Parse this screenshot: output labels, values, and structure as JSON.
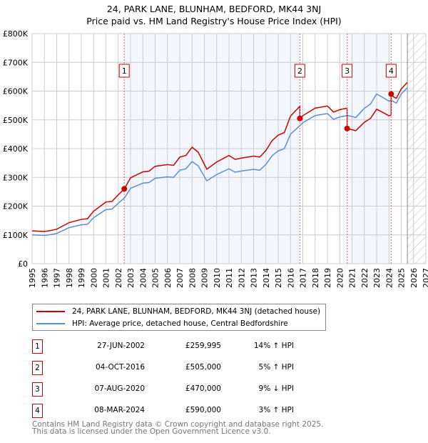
{
  "chart_data": {
    "type": "line",
    "title": "24, PARK LANE, BLUNHAM, BEDFORD, MK44 3NJ",
    "subtitle": "Price paid vs. HM Land Registry's House Price Index (HPI)",
    "ylim": [
      0,
      800000
    ],
    "xlim": [
      1995,
      2027
    ],
    "yticks": [
      {
        "v": 0,
        "l": "£0"
      },
      {
        "v": 100000,
        "l": "£100K"
      },
      {
        "v": 200000,
        "l": "£200K"
      },
      {
        "v": 300000,
        "l": "£300K"
      },
      {
        "v": 400000,
        "l": "£400K"
      },
      {
        "v": 500000,
        "l": "£500K"
      },
      {
        "v": 600000,
        "l": "£600K"
      },
      {
        "v": 700000,
        "l": "£700K"
      },
      {
        "v": 800000,
        "l": "£800K"
      }
    ],
    "xticks": [
      "1995",
      "1996",
      "1997",
      "1998",
      "1999",
      "2000",
      "2001",
      "2002",
      "2003",
      "2004",
      "2005",
      "2006",
      "2007",
      "2008",
      "2009",
      "2010",
      "2011",
      "2012",
      "2013",
      "2014",
      "2015",
      "2016",
      "2017",
      "2018",
      "2019",
      "2020",
      "2021",
      "2022",
      "2023",
      "2024",
      "2025",
      "2026",
      "2027"
    ],
    "forecast_start": 2025.5,
    "series": [
      {
        "name": "HPI: Average price, detached house, Central Bedfordshire",
        "color": "#5b8fd4",
        "x": [
          1995,
          1996,
          1996.5,
          1997,
          1998,
          1999,
          1999.5,
          2000,
          2001,
          2001.5,
          2002,
          2002.5,
          2003,
          2004,
          2004.5,
          2005,
          2006,
          2006.5,
          2007,
          2007.5,
          2008,
          2008.5,
          2009.2,
          2010,
          2011,
          2011.5,
          2012,
          2013,
          2013.5,
          2014,
          2014.5,
          2015,
          2015.5,
          2016,
          2016.76,
          2017,
          2018,
          2019,
          2019.5,
          2020,
          2020.6,
          2021,
          2021.3,
          2022,
          2022.5,
          2023,
          2023.5,
          2024,
          2024.18,
          2024.6,
          2025,
          2025.5
        ],
        "y": [
          100000,
          98000,
          101000,
          105000,
          125000,
          135000,
          137000,
          160000,
          188000,
          190000,
          210000,
          228000,
          262000,
          280000,
          282000,
          297000,
          302000,
          300000,
          325000,
          330000,
          355000,
          340000,
          288000,
          310000,
          330000,
          318000,
          322000,
          328000,
          325000,
          345000,
          375000,
          392000,
          400000,
          450000,
          480000,
          490000,
          515000,
          522000,
          502000,
          510000,
          515000,
          512000,
          508000,
          540000,
          555000,
          590000,
          578000,
          565000,
          568000,
          558000,
          590000,
          612000
        ]
      },
      {
        "name": "24, PARK LANE, BLUNHAM, BEDFORD, MK44 3NJ (detached house)",
        "color": "#cc0000",
        "derived_from": "hpi_scaled_by_sale_ratio"
      }
    ],
    "sales": [
      {
        "n": "1",
        "x": 2002.49,
        "date": "27-JUN-2002",
        "price": 259995,
        "price_label": "£259,995",
        "hpi": "14% ↑ HPI",
        "ratio": 1.14
      },
      {
        "n": "2",
        "x": 2016.76,
        "date": "04-OCT-2016",
        "price": 505000,
        "price_label": "£505,000",
        "hpi": "5% ↑ HPI",
        "ratio": 1.05
      },
      {
        "n": "3",
        "x": 2020.6,
        "date": "07-AUG-2020",
        "price": 470000,
        "price_label": "£470,000",
        "hpi": "9% ↓ HPI",
        "ratio": 0.91
      },
      {
        "n": "4",
        "x": 2024.18,
        "date": "08-MAR-2024",
        "price": 590000,
        "price_label": "£590,000",
        "hpi": "3% ↑ HPI",
        "ratio": 1.03
      }
    ],
    "legend": {
      "red": "24, PARK LANE, BLUNHAM, BEDFORD, MK44 3NJ (detached house)",
      "blue": "HPI: Average price, detached house, Central Bedfordshire"
    }
  },
  "footer": {
    "line1": "Contains HM Land Registry data © Crown copyright and database right 2025.",
    "line2": "This data is licensed under the Open Government Licence v3.0."
  }
}
